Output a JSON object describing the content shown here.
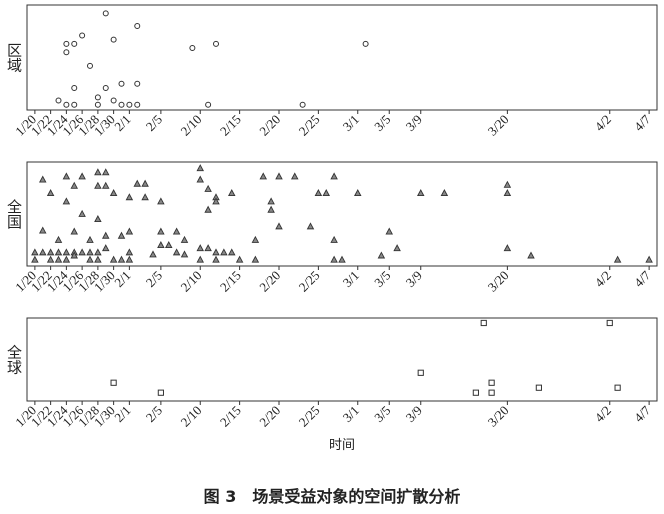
{
  "caption": "图 3　场景受益对象的空间扩散分析",
  "chart_data": [
    {
      "type": "scatter",
      "ylabel": "区域",
      "marker": "circle",
      "color": "#333333",
      "xlim": [
        19,
        99
      ],
      "ylim": [
        0,
        1
      ],
      "xticks": [
        {
          "value": 20,
          "label": "1/20"
        },
        {
          "value": 22,
          "label": "1/22"
        },
        {
          "value": 24,
          "label": "1/24"
        },
        {
          "value": 26,
          "label": "1/26"
        },
        {
          "value": 28,
          "label": "1/28"
        },
        {
          "value": 30,
          "label": "1/30"
        },
        {
          "value": 32,
          "label": "2/1"
        },
        {
          "value": 36,
          "label": "2/5"
        },
        {
          "value": 41,
          "label": "2/10"
        },
        {
          "value": 46,
          "label": "2/15"
        },
        {
          "value": 51,
          "label": "2/20"
        },
        {
          "value": 56,
          "label": "2/25"
        },
        {
          "value": 61,
          "label": "3/1"
        },
        {
          "value": 65,
          "label": "3/5"
        },
        {
          "value": 69,
          "label": "3/9"
        },
        {
          "value": 80,
          "label": "3/20"
        },
        {
          "value": 93,
          "label": "4/2"
        },
        {
          "value": 98,
          "label": "4/7"
        }
      ],
      "x": [
        29,
        33,
        26,
        24,
        25,
        30,
        24,
        27,
        40,
        43,
        62,
        31,
        33,
        25,
        29,
        23,
        28,
        30,
        24,
        25,
        28,
        31,
        32,
        33,
        42,
        54
      ],
      "values": [
        0.92,
        0.8,
        0.71,
        0.63,
        0.63,
        0.67,
        0.55,
        0.42,
        0.59,
        0.63,
        0.63,
        0.25,
        0.25,
        0.21,
        0.21,
        0.09,
        0.12,
        0.09,
        0.05,
        0.05,
        0.05,
        0.05,
        0.05,
        0.05,
        0.05,
        0.05
      ]
    },
    {
      "type": "scatter",
      "ylabel": "全国",
      "marker": "triangle",
      "color": "#333333",
      "xlim": [
        19,
        99
      ],
      "ylim": [
        0,
        1
      ],
      "xticks": [
        {
          "value": 20,
          "label": "1/20"
        },
        {
          "value": 22,
          "label": "1/22"
        },
        {
          "value": 24,
          "label": "1/24"
        },
        {
          "value": 26,
          "label": "1/26"
        },
        {
          "value": 28,
          "label": "1/28"
        },
        {
          "value": 30,
          "label": "1/30"
        },
        {
          "value": 32,
          "label": "2/1"
        },
        {
          "value": 36,
          "label": "2/5"
        },
        {
          "value": 41,
          "label": "2/10"
        },
        {
          "value": 46,
          "label": "2/15"
        },
        {
          "value": 51,
          "label": "2/20"
        },
        {
          "value": 56,
          "label": "2/25"
        },
        {
          "value": 61,
          "label": "3/1"
        },
        {
          "value": 65,
          "label": "3/5"
        },
        {
          "value": 69,
          "label": "3/9"
        },
        {
          "value": 80,
          "label": "3/20"
        },
        {
          "value": 93,
          "label": "4/2"
        },
        {
          "value": 98,
          "label": "4/7"
        }
      ],
      "x": [
        21,
        22,
        24,
        25,
        26,
        28,
        29,
        28,
        29,
        30,
        32,
        33,
        34,
        34,
        36,
        41,
        41,
        42,
        43,
        45,
        49,
        51,
        53,
        56,
        57,
        58,
        61,
        69,
        72,
        80,
        80,
        50,
        50,
        24,
        26,
        28,
        21,
        23,
        25,
        27,
        29,
        32,
        36,
        38,
        39,
        42,
        43,
        48,
        51,
        55,
        58,
        65,
        66,
        64,
        31,
        37,
        36,
        39,
        35,
        41,
        42,
        43,
        44,
        45,
        46,
        48,
        58,
        59,
        41,
        43,
        30,
        31,
        32,
        32,
        20,
        21,
        22,
        23,
        24,
        25,
        26,
        27,
        28,
        29,
        23,
        24,
        25,
        27,
        28,
        80,
        83,
        94,
        98,
        38,
        20,
        22
      ],
      "values": [
        0.83,
        0.7,
        0.86,
        0.77,
        0.86,
        0.9,
        0.9,
        0.77,
        0.77,
        0.7,
        0.66,
        0.79,
        0.79,
        0.66,
        0.62,
        0.94,
        0.83,
        0.74,
        0.66,
        0.7,
        0.86,
        0.86,
        0.86,
        0.7,
        0.7,
        0.86,
        0.7,
        0.7,
        0.7,
        0.78,
        0.7,
        0.62,
        0.54,
        0.62,
        0.5,
        0.45,
        0.34,
        0.25,
        0.33,
        0.25,
        0.29,
        0.33,
        0.33,
        0.33,
        0.25,
        0.54,
        0.62,
        0.25,
        0.38,
        0.38,
        0.25,
        0.33,
        0.17,
        0.1,
        0.29,
        0.2,
        0.2,
        0.11,
        0.11,
        0.17,
        0.17,
        0.13,
        0.13,
        0.13,
        0.06,
        0.06,
        0.06,
        0.06,
        0.06,
        0.06,
        0.06,
        0.06,
        0.13,
        0.06,
        0.13,
        0.13,
        0.13,
        0.13,
        0.13,
        0.13,
        0.13,
        0.13,
        0.13,
        0.17,
        0.06,
        0.06,
        0.1,
        0.06,
        0.06,
        0.17,
        0.1,
        0.06,
        0.06,
        0.13,
        0.06,
        0.06
      ]
    },
    {
      "type": "scatter",
      "ylabel": "全球",
      "xlabel": "时间",
      "marker": "square",
      "color": "#333333",
      "xlim": [
        19,
        99
      ],
      "ylim": [
        0,
        1
      ],
      "xticks": [
        {
          "value": 20,
          "label": "1/20"
        },
        {
          "value": 22,
          "label": "1/22"
        },
        {
          "value": 24,
          "label": "1/24"
        },
        {
          "value": 26,
          "label": "1/26"
        },
        {
          "value": 28,
          "label": "1/28"
        },
        {
          "value": 30,
          "label": "1/30"
        },
        {
          "value": 32,
          "label": "2/1"
        },
        {
          "value": 36,
          "label": "2/5"
        },
        {
          "value": 41,
          "label": "2/10"
        },
        {
          "value": 46,
          "label": "2/15"
        },
        {
          "value": 51,
          "label": "2/20"
        },
        {
          "value": 56,
          "label": "2/25"
        },
        {
          "value": 61,
          "label": "3/1"
        },
        {
          "value": 65,
          "label": "3/5"
        },
        {
          "value": 69,
          "label": "3/9"
        },
        {
          "value": 80,
          "label": "3/20"
        },
        {
          "value": 93,
          "label": "4/2"
        },
        {
          "value": 98,
          "label": "4/7"
        }
      ],
      "x": [
        30,
        36,
        69,
        77,
        93,
        78,
        76,
        78,
        84,
        94
      ],
      "values": [
        0.22,
        0.1,
        0.34,
        0.94,
        0.94,
        0.22,
        0.1,
        0.1,
        0.16,
        0.16
      ]
    }
  ]
}
